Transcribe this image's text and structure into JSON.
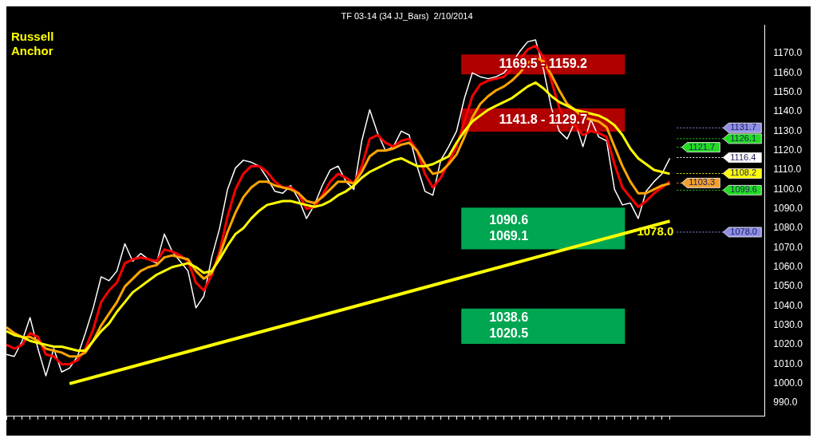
{
  "chart_data": {
    "type": "line",
    "title": "TF 03-14 (34 JJ_Bars)  2/10/2014",
    "annotations": [
      "Russell\nAnchor",
      "1078.0"
    ],
    "categories": [
      null,
      null,
      null,
      null,
      null,
      null,
      null,
      null,
      null,
      null,
      null,
      null,
      null,
      null,
      null,
      null,
      null,
      null,
      null,
      null,
      null,
      null,
      null,
      null,
      null,
      null,
      null,
      null,
      null,
      null,
      null,
      null,
      null,
      null,
      null,
      null,
      null,
      null,
      null,
      null,
      null,
      null,
      null,
      null,
      null,
      null,
      null,
      null,
      null,
      null,
      null,
      null,
      null,
      null,
      null,
      null,
      null,
      null,
      null,
      null,
      null,
      null,
      null,
      null,
      null,
      null,
      null,
      null,
      null,
      null,
      null,
      null,
      null,
      null,
      null,
      null,
      null,
      null,
      null,
      null,
      null,
      null,
      null,
      null,
      null
    ],
    "series": [
      {
        "color": "#ffff00",
        "values": [
          1027,
          1025,
          1024,
          1022,
          1021,
          1020,
          1019,
          1019,
          1018,
          1017,
          1017,
          1022,
          1027,
          1031,
          1037,
          1042,
          1047,
          1050,
          1053,
          1056,
          1058,
          1060,
          1061,
          1062,
          1060,
          1057,
          1058,
          1064,
          1071,
          1077,
          1080,
          1085,
          1089,
          1092,
          1093,
          1094,
          1094,
          1093,
          1092,
          1091,
          1092,
          1094,
          1097,
          1099,
          1102,
          1106,
          1109,
          1111,
          1113,
          1115,
          1116,
          1114,
          1112,
          1112,
          1113,
          1115,
          1117,
          1124,
          1130,
          1135,
          1138,
          1141,
          1143,
          1145,
          1147,
          1150,
          1153,
          1155,
          1152,
          1148,
          1145,
          1143,
          1141,
          1140,
          1139,
          1138,
          1136,
          1133,
          1128,
          1121,
          1116,
          1113,
          1110,
          1109,
          1108
        ]
      },
      {
        "color": "#ffa500",
        "values": [
          1029,
          1026,
          1024,
          1024,
          1022,
          1018,
          1017,
          1016,
          1014,
          1014,
          1016,
          1022,
          1030,
          1036,
          1042,
          1050,
          1054,
          1058,
          1060,
          1061,
          1065,
          1066,
          1065,
          1064,
          1058,
          1054,
          1057,
          1066,
          1078,
          1088,
          1096,
          1101,
          1104,
          1104,
          1102,
          1101,
          1100,
          1098,
          1094,
          1093,
          1096,
          1100,
          1104,
          1104,
          1103,
          1109,
          1117,
          1120,
          1120,
          1121,
          1123,
          1124,
          1120,
          1113,
          1108,
          1109,
          1113,
          1118,
          1127,
          1137,
          1144,
          1148,
          1151,
          1153,
          1156,
          1160,
          1165,
          1168,
          1166,
          1159,
          1151,
          1144,
          1141,
          1137,
          1136,
          1135,
          1132,
          1122,
          1112,
          1104,
          1098,
          1098,
          1100,
          1102,
          1103
        ]
      },
      {
        "color": "#ff0000",
        "values": [
          1020,
          1018,
          1020,
          1026,
          1024,
          1015,
          1014,
          1010,
          1010,
          1012,
          1018,
          1028,
          1042,
          1048,
          1052,
          1062,
          1064,
          1065,
          1064,
          1063,
          1069,
          1068,
          1066,
          1063,
          1052,
          1048,
          1056,
          1068,
          1086,
          1100,
          1108,
          1112,
          1112,
          1109,
          1104,
          1101,
          1101,
          1098,
          1090,
          1091,
          1097,
          1104,
          1108,
          1106,
          1103,
          1112,
          1126,
          1128,
          1124,
          1122,
          1125,
          1126,
          1120,
          1108,
          1101,
          1106,
          1114,
          1122,
          1135,
          1148,
          1154,
          1156,
          1157,
          1158,
          1162,
          1167,
          1172,
          1174,
          1168,
          1156,
          1142,
          1134,
          1133,
          1128,
          1130,
          1129,
          1127,
          1113,
          1101,
          1096,
          1091,
          1094,
          1098,
          1101,
          1104
        ]
      },
      {
        "color": "#ffffff",
        "values": [
          1015,
          1014,
          1022,
          1034,
          1018,
          1004,
          1018,
          1006,
          1008,
          1014,
          1026,
          1039,
          1055,
          1053,
          1058,
          1072,
          1063,
          1067,
          1064,
          1062,
          1077,
          1068,
          1063,
          1058,
          1039,
          1045,
          1065,
          1080,
          1100,
          1111,
          1115,
          1114,
          1112,
          1106,
          1099,
          1098,
          1102,
          1095,
          1085,
          1092,
          1102,
          1110,
          1112,
          1104,
          1100,
          1125,
          1141,
          1129,
          1120,
          1122,
          1130,
          1128,
          1112,
          1099,
          1097,
          1115,
          1122,
          1130,
          1147,
          1160,
          1158,
          1157,
          1158,
          1160,
          1165,
          1171,
          1176,
          1177,
          1162,
          1142,
          1130,
          1126,
          1135,
          1122,
          1136,
          1127,
          1125,
          1100,
          1092,
          1093,
          1085,
          1099,
          1104,
          1108,
          1116
        ]
      },
      {
        "color": "#ffff00",
        "values": [
          null,
          null,
          null,
          null,
          null,
          null,
          null,
          null,
          1000,
          null,
          null,
          null,
          null,
          null,
          null,
          null,
          null,
          null,
          null,
          null,
          null,
          null,
          null,
          null,
          null,
          null,
          null,
          null,
          null,
          null,
          null,
          null,
          null,
          null,
          null,
          null,
          null,
          null,
          null,
          null,
          null,
          null,
          null,
          null,
          null,
          null,
          null,
          null,
          null,
          null,
          null,
          null,
          null,
          null,
          null,
          null,
          null,
          null,
          null,
          null,
          null,
          null,
          null,
          null,
          null,
          null,
          null,
          null,
          null,
          null,
          null,
          null,
          null,
          null,
          null,
          null,
          null,
          null,
          null,
          null,
          null,
          null,
          null,
          null,
          1083.7
        ]
      }
    ],
    "bands": [
      {
        "axis": "y",
        "from": 1159.2,
        "to": 1169.5,
        "label": "1169.5 - 1159.2",
        "color": "#b00000"
      },
      {
        "axis": "y",
        "from": 1129.7,
        "to": 1141.8,
        "label": "1141.8 - 1129.7",
        "color": "#b00000"
      },
      {
        "axis": "y",
        "from": 1069.1,
        "to": 1090.6,
        "label": "1090.6\n1069.1",
        "color": "#00a651"
      },
      {
        "axis": "y",
        "from": 1020.5,
        "to": 1038.6,
        "label": "1038.6\n1020.5",
        "color": "#00a651"
      }
    ],
    "ref_lines": [
      {
        "axis": "y",
        "value": 1131.7,
        "label": "1131.7",
        "color": "#8f8fe6"
      },
      {
        "axis": "y",
        "value": 1126.1,
        "label": "1126.1",
        "color": "#22dd22"
      },
      {
        "axis": "y",
        "value": 1121.7,
        "label": "1121.7",
        "color": "#22dd22"
      },
      {
        "axis": "y",
        "value": 1116.4,
        "label": "1116.4",
        "color": "#ffffff"
      },
      {
        "axis": "y",
        "value": 1108.2,
        "label": "1108.2",
        "color": "#ffff00"
      },
      {
        "axis": "y",
        "value": 1103.3,
        "label": "1103.3",
        "color": "#f0a030"
      },
      {
        "axis": "y",
        "value": 1099.6,
        "label": "1099.6",
        "color": "#22dd22"
      },
      {
        "axis": "y",
        "value": 1078.0,
        "label": "1078.0",
        "color": "#8f8fe6"
      }
    ],
    "ylim": [
      983.5,
      1184.7
    ],
    "yticks": [
      {
        "value": 990,
        "label": "990.0"
      },
      {
        "value": 1000,
        "label": "1000.0"
      },
      {
        "value": 1010,
        "label": "1010.0"
      },
      {
        "value": 1020,
        "label": "1020.0"
      },
      {
        "value": 1030,
        "label": "1030.0"
      },
      {
        "value": 1040,
        "label": "1040.0"
      },
      {
        "value": 1050,
        "label": "1050.0"
      },
      {
        "value": 1060,
        "label": "1060.0"
      },
      {
        "value": 1070,
        "label": "1070.0"
      },
      {
        "value": 1080,
        "label": "1080.0"
      },
      {
        "value": 1090,
        "label": "1090.0"
      },
      {
        "value": 1100,
        "label": "1100.0"
      },
      {
        "value": 1110,
        "label": "1110.0"
      },
      {
        "value": 1120,
        "label": "1120.0"
      },
      {
        "value": 1130,
        "label": "1130.0"
      },
      {
        "value": 1140,
        "label": "1140.0"
      },
      {
        "value": 1150,
        "label": "1150.0"
      },
      {
        "value": 1160,
        "label": "1160.0"
      },
      {
        "value": 1170,
        "label": "1170.0"
      }
    ],
    "tick_labels": "y",
    "grid": false,
    "legend": false,
    "marker": "none",
    "line_style": "solid"
  }
}
